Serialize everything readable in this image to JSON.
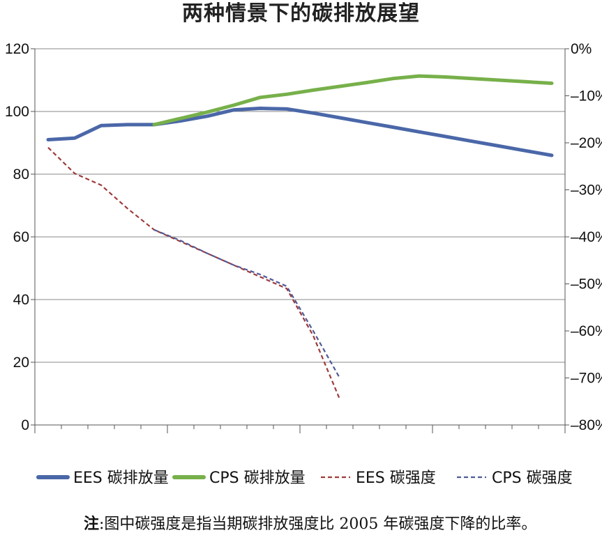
{
  "chart_data": {
    "type": "line",
    "title": "两种情景下的碳排放展望",
    "y_left": {
      "lim": [
        0,
        120
      ],
      "ticks": [
        "0",
        "20",
        "40",
        "60",
        "80",
        "100",
        "120"
      ]
    },
    "y_right": {
      "lim": [
        -80,
        0
      ],
      "ticks": [
        "0%",
        "-10%",
        "-20%",
        "-30%",
        "-40%",
        "-50%",
        "-60%",
        "-70%",
        "-80%"
      ]
    },
    "x_count": 20,
    "grid": true,
    "legend_position": "bottom",
    "series": [
      {
        "name": "EES 碳排放量",
        "axis": "left",
        "style": "solid",
        "color": "#4a67a8",
        "x": [
          0,
          1,
          2,
          3,
          4,
          5,
          6,
          7,
          8,
          9,
          10,
          11,
          12,
          13,
          14,
          15,
          16,
          17,
          18,
          19
        ],
        "values": [
          91,
          91.5,
          95.5,
          95.8,
          95.8,
          97,
          98.5,
          100.5,
          101,
          100.8,
          99.5,
          98,
          96.5,
          95,
          93.5,
          92,
          90.5,
          89,
          87.5,
          86
        ]
      },
      {
        "name": "CPS 碳排放量",
        "axis": "left",
        "style": "solid",
        "color": "#77b04a",
        "x": [
          4,
          5,
          6,
          7,
          8,
          9,
          10,
          11,
          12,
          13,
          14,
          15,
          16,
          17,
          18,
          19
        ],
        "values": [
          95.8,
          97.8,
          99.8,
          102,
          104.5,
          105.5,
          106.8,
          108,
          109.2,
          110.5,
          111.3,
          111,
          110.5,
          110,
          109.5,
          109
        ]
      },
      {
        "name": "EES 碳强度",
        "axis": "right",
        "style": "dashed",
        "color": "#9e3a3a",
        "x": [
          0,
          1,
          2,
          3,
          4,
          5,
          6,
          7,
          8,
          9,
          10,
          11
        ],
        "values": [
          -21,
          -26.5,
          -29,
          -34,
          -38.5,
          -41,
          -43.5,
          -46,
          -48.5,
          -51,
          -61,
          -74.5
        ]
      },
      {
        "name": "CPS 碳强度",
        "axis": "right",
        "style": "dashed",
        "color": "#4f5a9a",
        "x": [
          4,
          5,
          6,
          7,
          8,
          9,
          10,
          11
        ],
        "values": [
          -38.5,
          -40.8,
          -43.5,
          -46,
          -48,
          -50.5,
          -60,
          -70
        ]
      }
    ]
  },
  "footnote": {
    "label": "注",
    "text": ":图中碳强度是指当期碳排放强度比 2005 年碳强度下降的比率。"
  }
}
